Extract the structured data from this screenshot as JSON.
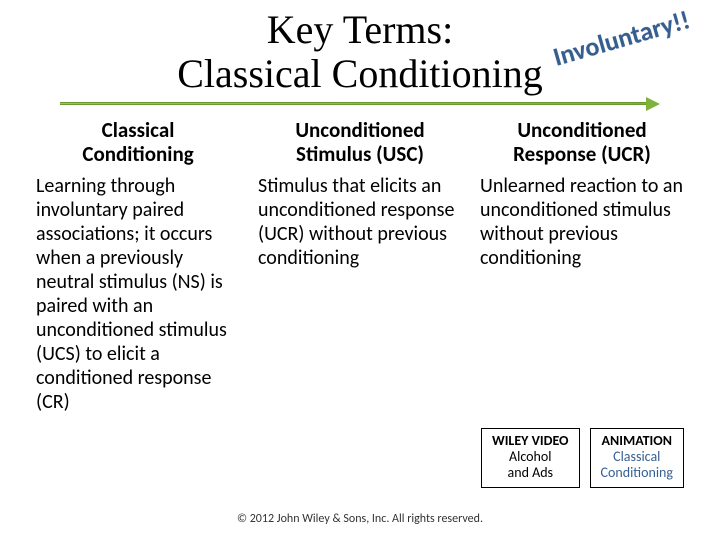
{
  "title": {
    "line1": "Key Terms:",
    "line2": "Classical Conditioning"
  },
  "callout": "Involuntary!!",
  "arrow": {
    "fill": "#7fb23a",
    "stroke": "#6a9a2e"
  },
  "columns": [
    {
      "heading_l1": "Classical",
      "heading_l2": "Conditioning",
      "body": "Learning through involuntary paired associations; it occurs when a previously neutral stimulus (NS) is paired with an unconditioned stimulus (UCS) to elicit a conditioned response (CR)"
    },
    {
      "heading_l1": "Unconditioned",
      "heading_l2": "Stimulus (USC)",
      "body": "Stimulus that elicits an unconditioned response (UCR) without previous conditioning"
    },
    {
      "heading_l1": "Unconditioned",
      "heading_l2": "Response (UCR)",
      "body": "Unlearned reaction to an unconditioned stimulus without previous conditioning"
    }
  ],
  "boxes": [
    {
      "title": "WILEY VIDEO",
      "sub1": "Alcohol",
      "sub2": "and Ads",
      "sub_color": "#000000"
    },
    {
      "title": "ANIMATION",
      "sub1": "Classical",
      "sub2": "Conditioning",
      "sub_color": "#365f91"
    }
  ],
  "copyright": "© 2012 John Wiley & Sons, Inc. All rights reserved.",
  "typography": {
    "title_font": "Georgia",
    "title_size_pt": 40,
    "body_font": "Calibri",
    "heading_size_pt": 21,
    "body_size_pt": 20,
    "callout_color": "#365f91"
  }
}
